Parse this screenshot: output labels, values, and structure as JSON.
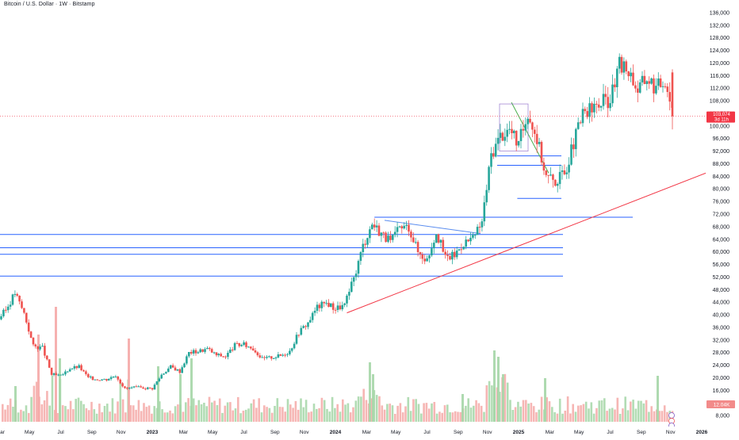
{
  "chart_data": {
    "type": "candlestick",
    "title": "Bitcoin / U.S. Dollar · 1W · Bitstamp",
    "colors": {
      "up": "#26a69a",
      "down": "#ef5350",
      "vol_up": "#a5d6a7",
      "vol_down": "#f5a9a7",
      "level_line": "#2962ff",
      "trend_line": "#f23645",
      "pennant_line": "#5b8def",
      "green_line": "#4caf50",
      "price_label_bg": "#f23645",
      "volume_label_bg": "#f28b8a",
      "grid": "#f0f3fa"
    },
    "y_axis": {
      "side": "right",
      "ticks": [
        "136,000",
        "132,000",
        "128,000",
        "124,000",
        "120,000",
        "116,000",
        "112,000",
        "108,000",
        "104,000",
        "100,000",
        "96,000",
        "92,000",
        "88,000",
        "84,000",
        "80,000",
        "76,000",
        "72,000",
        "68,000",
        "64,000",
        "60,000",
        "56,000",
        "52,000",
        "48,000",
        "44,000",
        "40,000",
        "36,000",
        "32,000",
        "28,000",
        "24,000",
        "20,000",
        "16,000",
        "12,000",
        "8,000"
      ],
      "range": [
        6000,
        138000
      ]
    },
    "x_axis": {
      "ticks": [
        "Mar",
        "May",
        "Jul",
        "Sep",
        "Nov",
        "2023",
        "Mar",
        "May",
        "Jul",
        "Sep",
        "Nov",
        "2024",
        "Mar",
        "May",
        "Jul",
        "Sep",
        "Nov",
        "2025",
        "Mar",
        "May",
        "Jul",
        "Sep",
        "Nov",
        "2026"
      ]
    },
    "current_price": {
      "value": "103,074",
      "countdown": "3d 11h",
      "price": 103074
    },
    "current_volume": {
      "value": "12.04K"
    },
    "horizontal_levels": [
      {
        "price": 71000,
        "start": 2024.2
      },
      {
        "price": 65500,
        "start": 2021.9
      },
      {
        "price": 61300,
        "start": 2021.9
      },
      {
        "price": 59200,
        "start": 2021.9
      },
      {
        "price": 52300,
        "start": 2021.9
      },
      {
        "price": 90500,
        "start": 2024.87
      },
      {
        "price": 87500,
        "start": 2024.87
      },
      {
        "price": 77000,
        "start": 2024.98
      }
    ],
    "trend_line": {
      "from": [
        2024.05,
        40600
      ],
      "to": [
        2025.95,
        85000
      ]
    },
    "weekly_closes": [
      [
        2022.15,
        38000
      ],
      [
        2022.2,
        41500
      ],
      [
        2022.25,
        47000
      ],
      [
        2022.3,
        40500
      ],
      [
        2022.35,
        30000
      ],
      [
        2022.4,
        29500
      ],
      [
        2022.45,
        21000
      ],
      [
        2022.5,
        20500
      ],
      [
        2022.55,
        23000
      ],
      [
        2022.6,
        23500
      ],
      [
        2022.65,
        20000
      ],
      [
        2022.7,
        19500
      ],
      [
        2022.75,
        19500
      ],
      [
        2022.8,
        20800
      ],
      [
        2022.85,
        16500
      ],
      [
        2022.9,
        16900
      ],
      [
        2022.95,
        16800
      ],
      [
        2023.0,
        16600
      ],
      [
        2023.05,
        21000
      ],
      [
        2023.1,
        23500
      ],
      [
        2023.15,
        22000
      ],
      [
        2023.2,
        28000
      ],
      [
        2023.25,
        28400
      ],
      [
        2023.3,
        29200
      ],
      [
        2023.35,
        27200
      ],
      [
        2023.4,
        26800
      ],
      [
        2023.45,
        30300
      ],
      [
        2023.5,
        30500
      ],
      [
        2023.55,
        29300
      ],
      [
        2023.6,
        26000
      ],
      [
        2023.65,
        26500
      ],
      [
        2023.7,
        27000
      ],
      [
        2023.75,
        28500
      ],
      [
        2023.8,
        34500
      ],
      [
        2023.85,
        37500
      ],
      [
        2023.9,
        42500
      ],
      [
        2023.95,
        43800
      ],
      [
        2024.0,
        42000
      ],
      [
        2024.05,
        43000
      ],
      [
        2024.1,
        51500
      ],
      [
        2024.15,
        62000
      ],
      [
        2024.2,
        69000
      ],
      [
        2024.25,
        66000
      ],
      [
        2024.3,
        63000
      ],
      [
        2024.35,
        67500
      ],
      [
        2024.4,
        68000
      ],
      [
        2024.45,
        60000
      ],
      [
        2024.5,
        57500
      ],
      [
        2024.55,
        66500
      ],
      [
        2024.6,
        58000
      ],
      [
        2024.65,
        59000
      ],
      [
        2024.7,
        63000
      ],
      [
        2024.75,
        64000
      ],
      [
        2024.8,
        69500
      ],
      [
        2024.85,
        91000
      ],
      [
        2024.9,
        97000
      ],
      [
        2024.95,
        99000
      ],
      [
        2025.0,
        94000
      ],
      [
        2025.05,
        104500
      ],
      [
        2025.1,
        96000
      ],
      [
        2025.15,
        84000
      ],
      [
        2025.2,
        82500
      ],
      [
        2025.25,
        85000
      ],
      [
        2025.3,
        94500
      ],
      [
        2025.35,
        103500
      ],
      [
        2025.4,
        105000
      ],
      [
        2025.45,
        107500
      ],
      [
        2025.5,
        108500
      ],
      [
        2025.55,
        119000
      ],
      [
        2025.6,
        118000
      ],
      [
        2025.65,
        111500
      ],
      [
        2025.7,
        115500
      ],
      [
        2025.75,
        112000
      ],
      [
        2025.8,
        115000
      ],
      [
        2025.85,
        103074
      ]
    ]
  }
}
